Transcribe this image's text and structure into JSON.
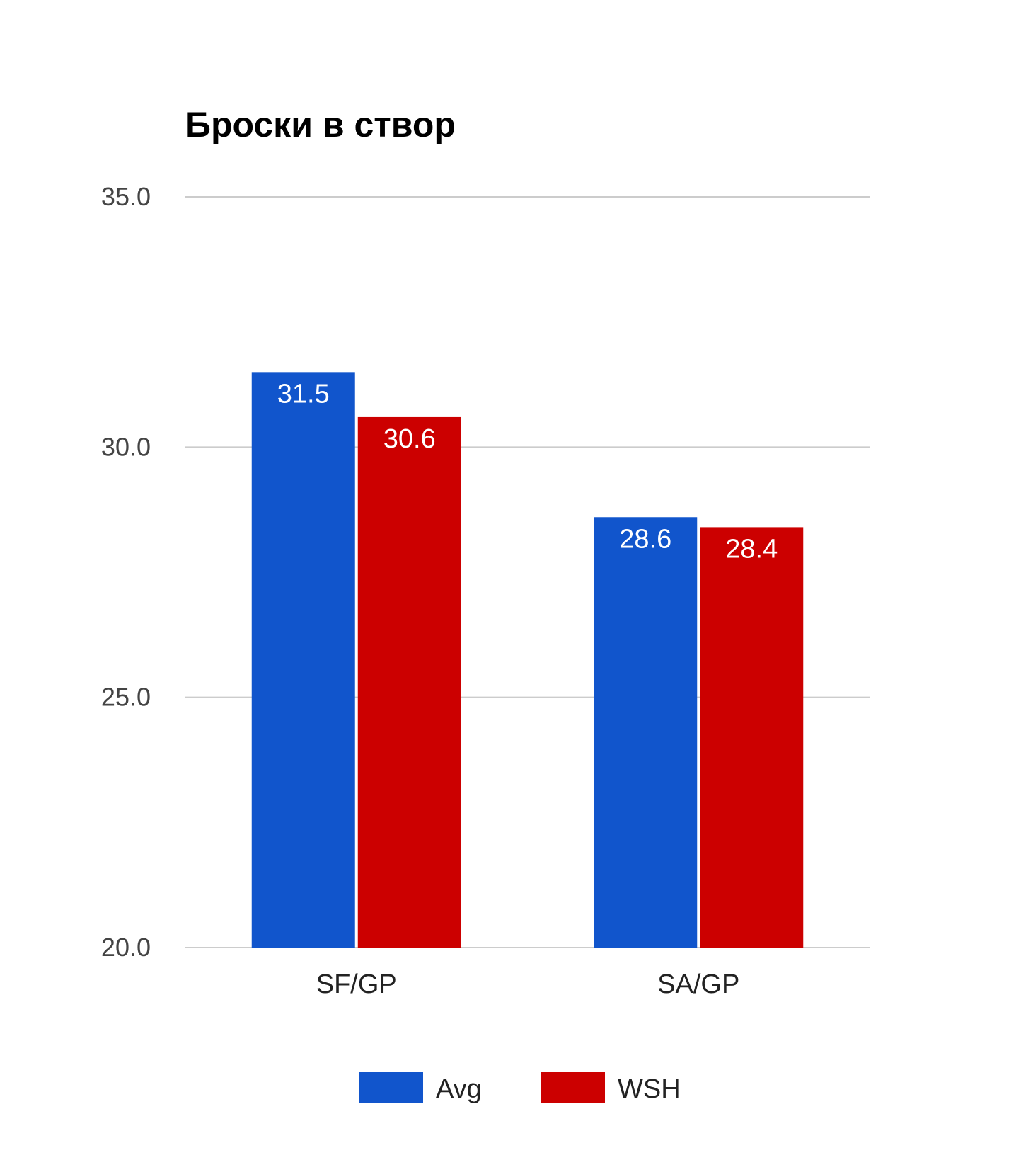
{
  "chart_data": {
    "type": "bar",
    "title": "Броски в створ",
    "categories": [
      "SF/GP",
      "SA/GP"
    ],
    "series": [
      {
        "name": "Avg",
        "color": "#1155cc",
        "values": [
          31.5,
          28.6
        ],
        "labels": [
          "31.5",
          "28.6"
        ]
      },
      {
        "name": "WSH",
        "color": "#cc0000",
        "values": [
          30.6,
          28.4
        ],
        "labels": [
          "30.6",
          "28.4"
        ]
      }
    ],
    "ylim": [
      20,
      35
    ],
    "yticks": [
      20,
      25,
      30,
      35
    ],
    "ytick_labels": [
      "20.0",
      "25.0",
      "30.0",
      "35.0"
    ],
    "xlabel": "",
    "ylabel": "",
    "grid": true,
    "legend": "bottom"
  }
}
